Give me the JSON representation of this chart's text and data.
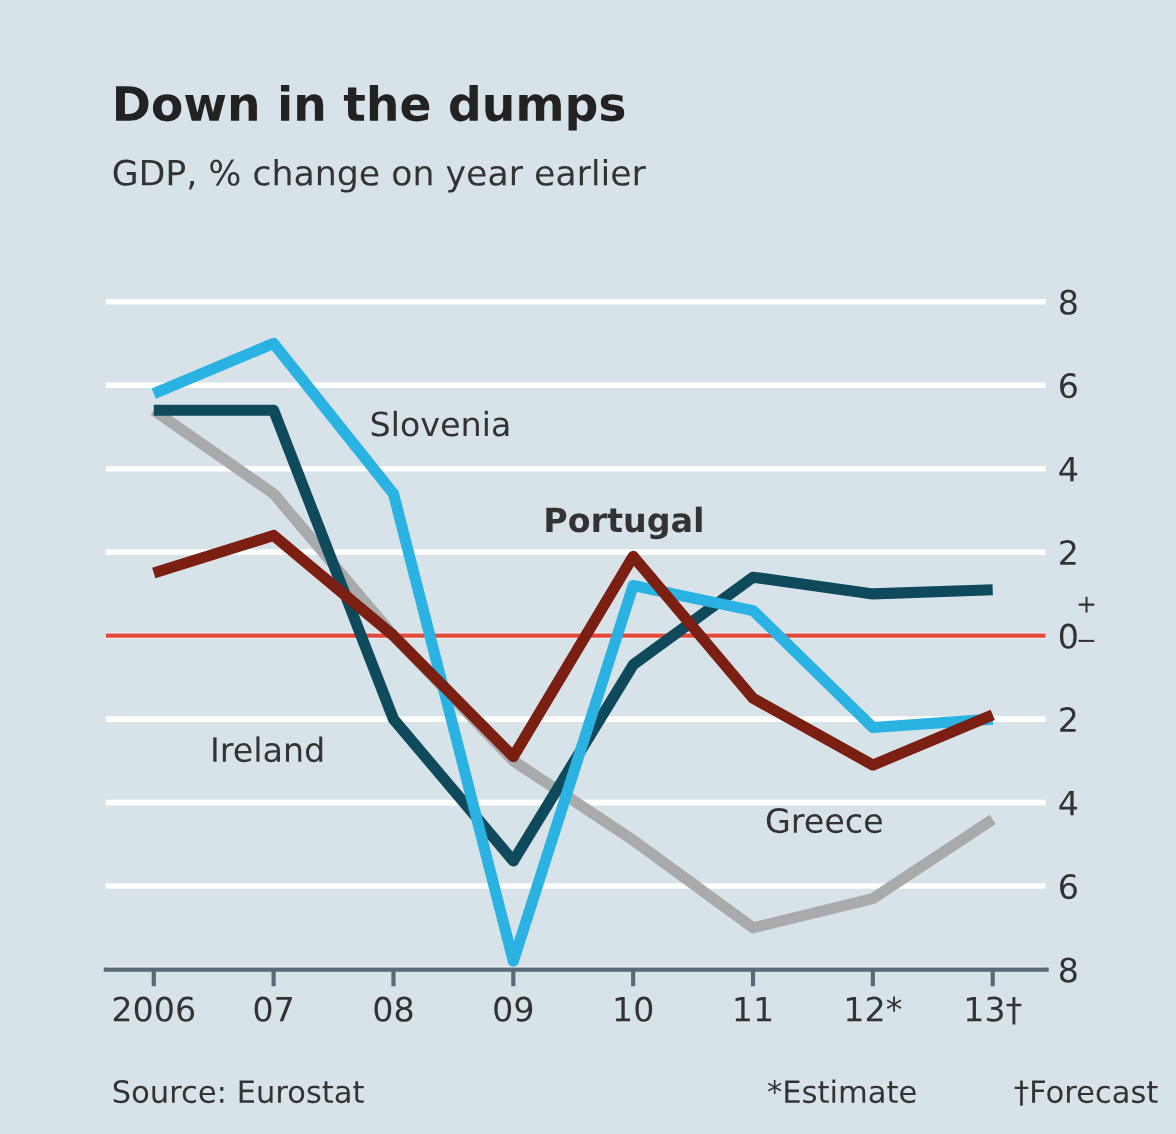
{
  "chart_data": {
    "type": "line",
    "title": "Down in the dumps",
    "subtitle": "GDP, % change on year earlier",
    "categories": [
      "2006",
      "07",
      "08",
      "09",
      "10",
      "11",
      "12*",
      "13†"
    ],
    "series": [
      {
        "name": "Greece",
        "color": "#a9aaab",
        "values": [
          5.4,
          3.4,
          0.0,
          -3.0,
          -4.9,
          -7.0,
          -6.3,
          -4.4
        ]
      },
      {
        "name": "Ireland",
        "color": "#0e4a5c",
        "values": [
          5.4,
          5.4,
          -2.0,
          -5.4,
          -0.7,
          1.4,
          1.0,
          1.1
        ]
      },
      {
        "name": "Slovenia",
        "color": "#2ab3e2",
        "values": [
          5.8,
          7.0,
          3.4,
          -7.8,
          1.2,
          0.6,
          -2.2,
          -2.0
        ]
      },
      {
        "name": "Portugal",
        "color": "#7b1f12",
        "values": [
          1.5,
          2.4,
          0.0,
          -2.9,
          1.9,
          -1.5,
          -3.1,
          -1.9
        ]
      }
    ],
    "ylim": [
      -8,
      8.3
    ],
    "yticks": [
      8,
      6,
      4,
      2,
      0,
      {
        "value": -2,
        "label": "2"
      },
      {
        "value": -4,
        "label": "4"
      },
      {
        "value": -6,
        "label": "6"
      },
      {
        "value": -8,
        "label": "8"
      }
    ],
    "grid": "y",
    "ref_lines": [
      {
        "axis": "y",
        "value": 0,
        "color": "#e0493b"
      }
    ],
    "annotations": [
      "+",
      "−",
      "Source: Eurostat",
      "*Estimate",
      "†Forecast"
    ]
  }
}
